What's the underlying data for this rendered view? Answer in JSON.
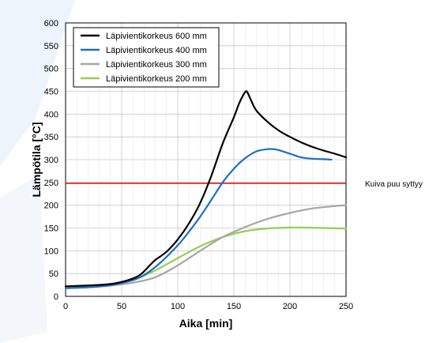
{
  "chart_data": {
    "type": "line",
    "xlabel": "Aika [min]",
    "ylabel": "Lämpötila [°C]",
    "xlim": [
      0,
      250
    ],
    "ylim": [
      0,
      600
    ],
    "xticks": [
      0,
      50,
      100,
      150,
      200,
      250
    ],
    "yticks": [
      0,
      50,
      100,
      150,
      200,
      250,
      300,
      350,
      400,
      450,
      500,
      550,
      600
    ],
    "grid": true,
    "legend_position": "top-left",
    "series": [
      {
        "name": "Läpivientikorkeus 600 mm",
        "color": "#000000",
        "x": [
          0,
          20,
          40,
          55,
          65,
          70,
          75,
          80,
          90,
          100,
          110,
          120,
          130,
          140,
          150,
          155,
          160,
          162,
          165,
          170,
          180,
          190,
          200,
          210,
          220,
          230,
          240,
          250
        ],
        "y": [
          22,
          24,
          27,
          35,
          45,
          55,
          68,
          80,
          98,
          125,
          160,
          205,
          265,
          335,
          393,
          425,
          448,
          448,
          432,
          408,
          383,
          364,
          350,
          338,
          328,
          320,
          313,
          305
        ]
      },
      {
        "name": "Läpivientikorkeus 400 mm",
        "color": "#1f6fbf",
        "x": [
          0,
          20,
          40,
          55,
          65,
          75,
          85,
          100,
          110,
          120,
          130,
          140,
          150,
          160,
          170,
          180,
          185,
          190,
          200,
          210,
          220,
          230,
          237
        ],
        "y": [
          18,
          20,
          24,
          32,
          40,
          55,
          75,
          112,
          142,
          175,
          212,
          250,
          280,
          303,
          318,
          323,
          323,
          321,
          313,
          305,
          302,
          301,
          300
        ]
      },
      {
        "name": "Läpivientikorkeus 300 mm",
        "color": "#a6a6a6",
        "x": [
          0,
          20,
          40,
          60,
          80,
          100,
          120,
          140,
          160,
          180,
          200,
          220,
          240,
          250
        ],
        "y": [
          18,
          20,
          24,
          30,
          42,
          68,
          100,
          130,
          152,
          170,
          183,
          193,
          198,
          200
        ]
      },
      {
        "name": "Läpivientikorkeus 200 mm",
        "color": "#92d050",
        "x": [
          0,
          20,
          40,
          60,
          80,
          100,
          120,
          140,
          160,
          180,
          200,
          210,
          230,
          250
        ],
        "y": [
          18,
          21,
          26,
          36,
          57,
          84,
          110,
          130,
          143,
          149,
          151,
          151,
          150,
          149
        ]
      }
    ],
    "reference_line": {
      "y": 248,
      "color": "#e31b1b",
      "label": "Kuiva puu syttyy"
    }
  }
}
